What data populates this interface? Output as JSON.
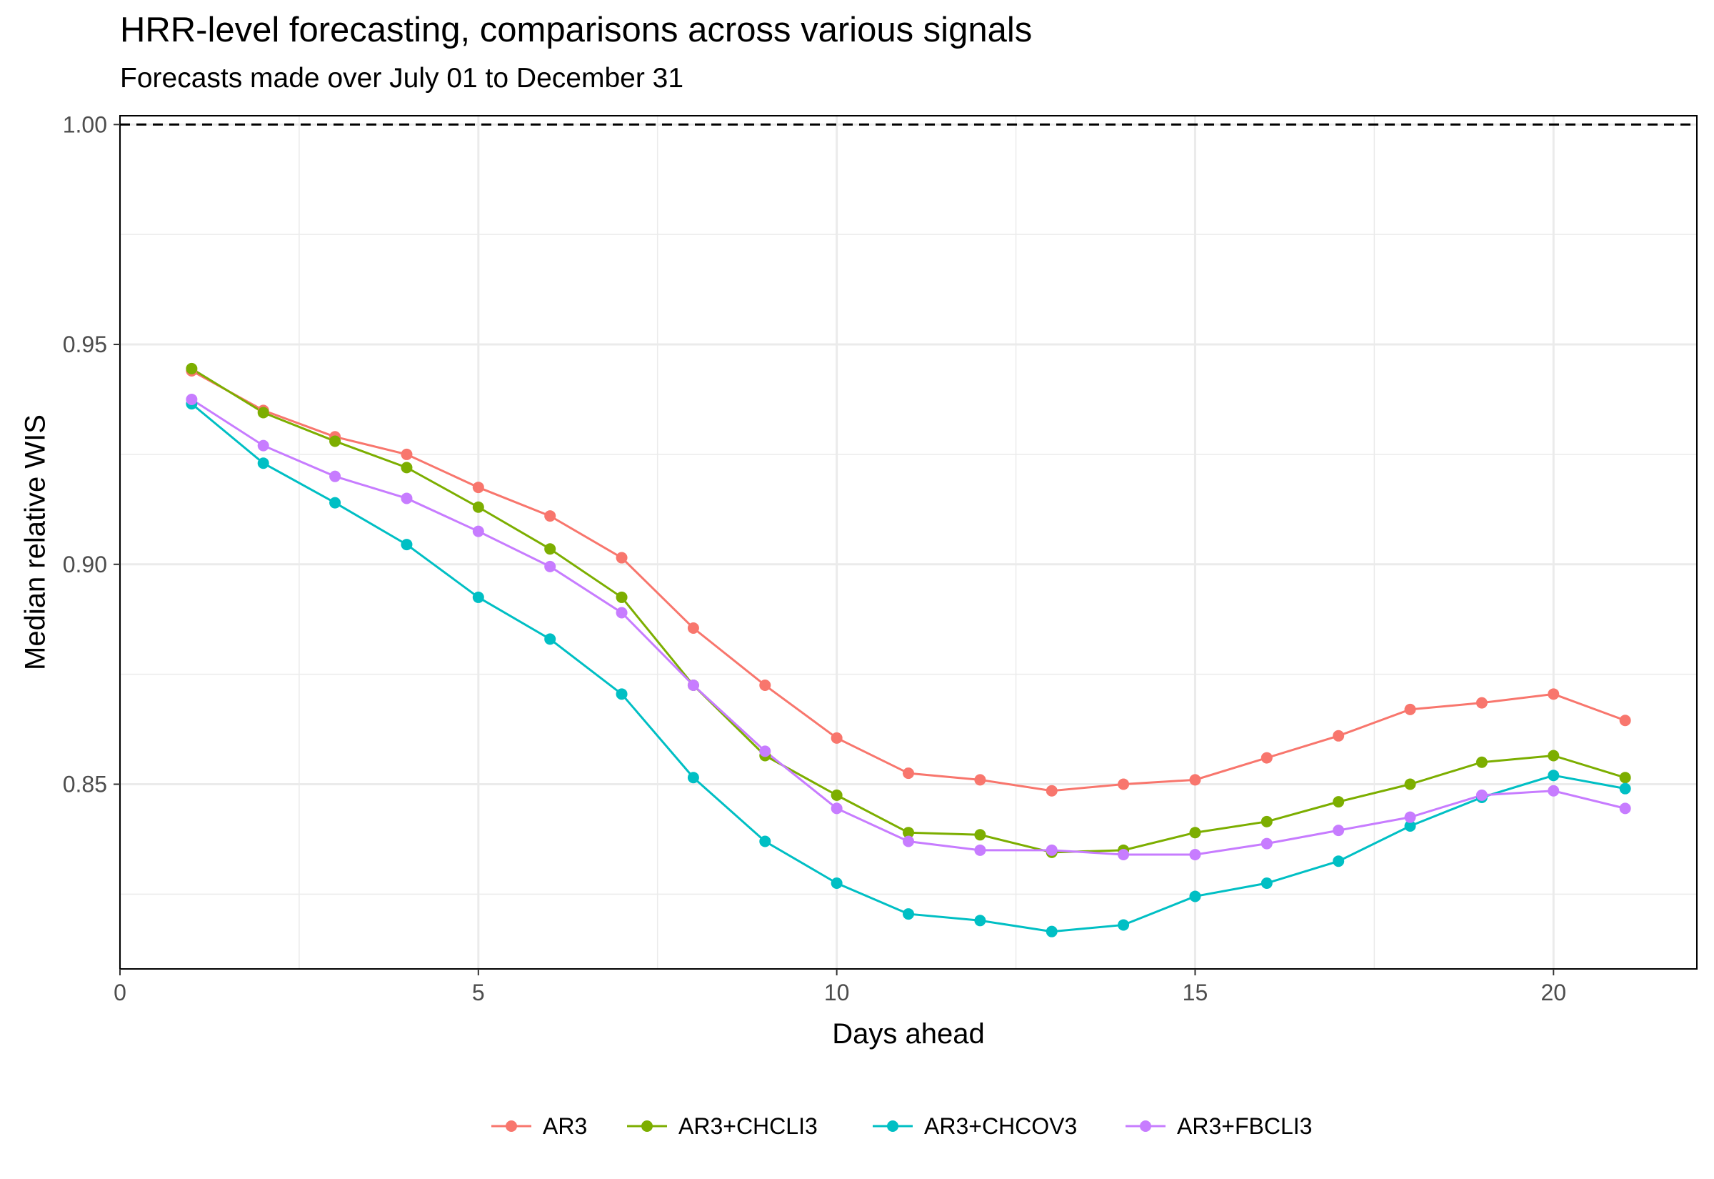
{
  "chart_data": {
    "type": "line",
    "title": "HRR-level forecasting, comparisons across various signals",
    "subtitle": "Forecasts made over July 01 to December 31",
    "xlabel": "Days ahead",
    "ylabel": "Median relative WIS",
    "xlim": [
      0,
      22
    ],
    "ylim": [
      0.808,
      1.002
    ],
    "x_ticks": [
      0,
      5,
      10,
      15,
      20
    ],
    "x_tick_labels": [
      "0",
      "5",
      "10",
      "15",
      "20"
    ],
    "y_ticks": [
      0.85,
      0.9,
      0.95,
      1.0
    ],
    "y_tick_labels": [
      "0.85",
      "0.90",
      "0.95",
      "1.00"
    ],
    "reference_line": {
      "y": 1.0,
      "style": "dashed",
      "color": "#000000"
    },
    "grid": true,
    "legend_position": "bottom",
    "x": [
      1,
      2,
      3,
      4,
      5,
      6,
      7,
      8,
      9,
      10,
      11,
      12,
      13,
      14,
      15,
      16,
      17,
      18,
      19,
      20,
      21
    ],
    "series": [
      {
        "name": "AR3",
        "color": "#F8766D",
        "values": [
          0.944,
          0.935,
          0.929,
          0.925,
          0.9175,
          0.911,
          0.9015,
          0.8855,
          0.8725,
          0.8605,
          0.8525,
          0.851,
          0.8485,
          0.85,
          0.851,
          0.856,
          0.861,
          0.867,
          0.8685,
          0.8705,
          0.8645
        ]
      },
      {
        "name": "AR3+CHCLI3",
        "color": "#7CAE00",
        "values": [
          0.9445,
          0.9345,
          0.928,
          0.922,
          0.913,
          0.9035,
          0.8925,
          0.8725,
          0.8565,
          0.8475,
          0.839,
          0.8385,
          0.8345,
          0.835,
          0.839,
          0.8415,
          0.846,
          0.85,
          0.855,
          0.8565,
          0.8515
        ]
      },
      {
        "name": "AR3+CHCOV3",
        "color": "#00BFC4",
        "values": [
          0.9365,
          0.923,
          0.914,
          0.9045,
          0.8925,
          0.883,
          0.8705,
          0.8515,
          0.837,
          0.8275,
          0.8205,
          0.819,
          0.8165,
          0.818,
          0.8245,
          0.8275,
          0.8325,
          0.8405,
          0.847,
          0.852,
          0.849
        ]
      },
      {
        "name": "AR3+FBCLI3",
        "color": "#C77CFF",
        "values": [
          0.9375,
          0.927,
          0.92,
          0.915,
          0.9075,
          0.8995,
          0.889,
          0.8725,
          0.8575,
          0.8445,
          0.837,
          0.835,
          0.835,
          0.834,
          0.834,
          0.8365,
          0.8395,
          0.8425,
          0.8475,
          0.8485,
          0.8445
        ]
      }
    ]
  }
}
